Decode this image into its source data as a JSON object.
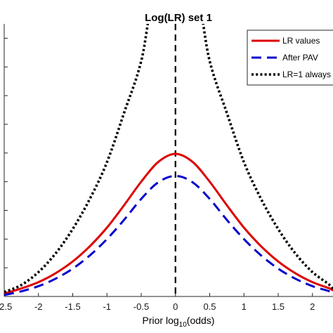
{
  "chart_data": {
    "type": "line",
    "title": "Log(LR) set 1",
    "xlabel": {
      "main": "Prior log",
      "sub": "10",
      "tail": "(odds)"
    },
    "ylabel": "",
    "xlim": [
      -2.5,
      2.3
    ],
    "ylim": [
      0.0,
      0.95
    ],
    "x_ticks": [
      -2.5,
      -2,
      -1.5,
      -1,
      -0.5,
      0,
      0.5,
      1,
      1.5,
      2
    ],
    "x_tick_labels": [
      "-2.5",
      "-2",
      "-1.5",
      "-1",
      "-0.5",
      "0",
      "0.5",
      "1",
      "1.5",
      "2"
    ],
    "y_ticks": [
      0.1,
      0.2,
      0.3,
      0.4,
      0.5,
      0.6,
      0.7,
      0.8,
      0.9
    ],
    "grid": false,
    "legend_position": "top-right",
    "vertical_marker": {
      "x": 0,
      "style": "dashed",
      "color": "#000000"
    },
    "series": [
      {
        "name": "LR values",
        "color": "#dd0000",
        "style": "solid",
        "x": [
          -2.5,
          -2.25,
          -2.0,
          -1.75,
          -1.5,
          -1.25,
          -1.0,
          -0.75,
          -0.5,
          -0.25,
          0,
          0.25,
          0.5,
          0.75,
          1.0,
          1.25,
          1.5,
          1.75,
          2.0,
          2.25,
          2.3
        ],
        "y": [
          0.01,
          0.028,
          0.05,
          0.081,
          0.122,
          0.175,
          0.24,
          0.318,
          0.4,
          0.469,
          0.497,
          0.469,
          0.4,
          0.318,
          0.24,
          0.175,
          0.122,
          0.081,
          0.05,
          0.028,
          0.02
        ]
      },
      {
        "name": "After PAV",
        "color": "#0000cc",
        "style": "dashed",
        "x": [
          -2.5,
          -2.25,
          -2.0,
          -1.75,
          -1.5,
          -1.25,
          -1.0,
          -0.75,
          -0.5,
          -0.25,
          0,
          0.25,
          0.5,
          0.75,
          1.0,
          1.25,
          1.5,
          1.75,
          2.0,
          2.25,
          2.3
        ],
        "y": [
          0.005,
          0.018,
          0.036,
          0.062,
          0.097,
          0.143,
          0.2,
          0.267,
          0.34,
          0.398,
          0.42,
          0.398,
          0.34,
          0.267,
          0.2,
          0.143,
          0.097,
          0.062,
          0.036,
          0.018,
          0.01
        ]
      },
      {
        "name": "LR=1 always",
        "color": "#000000",
        "style": "dotted",
        "x": [
          -2.5,
          -2.25,
          -2.0,
          -1.75,
          -1.5,
          -1.25,
          -1.0,
          -0.75,
          -0.5,
          -0.25,
          0.25,
          0.5,
          0.75,
          1.0,
          1.25,
          1.5,
          1.75,
          2.0,
          2.25,
          2.3
        ],
        "y": [
          0.015,
          0.04,
          0.085,
          0.15,
          0.235,
          0.34,
          0.468,
          0.64,
          0.82,
          1.1,
          1.1,
          0.82,
          0.64,
          0.468,
          0.34,
          0.235,
          0.15,
          0.085,
          0.04,
          0.02
        ]
      }
    ]
  }
}
